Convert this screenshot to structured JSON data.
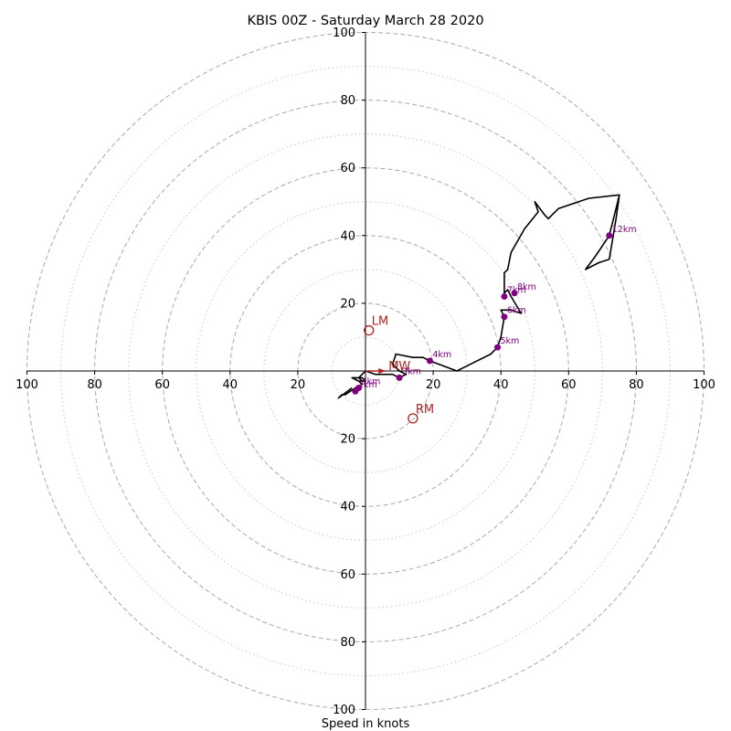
{
  "chart_data": {
    "type": "hodograph",
    "title": "KBIS 00Z - Saturday March 28 2020",
    "xlabel": "Speed in knots",
    "range": [
      -100,
      100
    ],
    "dashed_rings": [
      20,
      40,
      60,
      80,
      100
    ],
    "dotted_rings": [
      10,
      30,
      50,
      70,
      90
    ],
    "x_tick_labels": [
      "100",
      "80",
      "60",
      "40",
      "20",
      "20",
      "40",
      "60",
      "80",
      "100"
    ],
    "y_tick_labels": [
      "100",
      "80",
      "60",
      "40",
      "20",
      "20",
      "40",
      "60",
      "80",
      "100"
    ],
    "colors": {
      "trace": "#000000",
      "height_points": "#800080",
      "motion": "#b22222",
      "ring": "#b0b0b0"
    },
    "trace": [
      [
        -4,
        -5
      ],
      [
        -8,
        -8
      ],
      [
        -7,
        -7
      ],
      [
        -6,
        -7
      ],
      [
        -3,
        -5
      ],
      [
        -1,
        -4
      ],
      [
        -2,
        -3
      ],
      [
        -1,
        -3
      ],
      [
        -2,
        -2
      ],
      [
        -1,
        -2
      ],
      [
        0,
        -3
      ],
      [
        -2,
        -3
      ],
      [
        -4,
        -2
      ],
      [
        -2,
        -2
      ],
      [
        -1,
        -1
      ],
      [
        0,
        0
      ],
      [
        3,
        -1
      ],
      [
        5,
        -1
      ],
      [
        8,
        -1
      ],
      [
        10,
        -2
      ],
      [
        12,
        -1
      ],
      [
        10,
        0
      ],
      [
        8,
        2
      ],
      [
        9,
        5
      ],
      [
        14,
        4
      ],
      [
        17,
        4
      ],
      [
        19,
        3
      ],
      [
        27,
        0
      ],
      [
        37,
        5
      ],
      [
        39,
        7
      ],
      [
        40,
        10
      ],
      [
        41,
        16
      ],
      [
        40,
        18
      ],
      [
        43,
        18
      ],
      [
        46,
        17
      ],
      [
        43,
        22
      ],
      [
        42,
        24
      ],
      [
        41,
        23
      ],
      [
        41,
        27
      ],
      [
        41,
        29
      ],
      [
        42,
        30
      ],
      [
        43,
        35
      ],
      [
        47,
        42
      ],
      [
        51,
        47
      ],
      [
        50,
        50
      ],
      [
        53,
        46
      ],
      [
        54,
        45
      ],
      [
        57,
        48
      ],
      [
        66,
        51
      ],
      [
        75,
        52
      ],
      [
        74,
        45
      ],
      [
        72,
        33
      ],
      [
        69,
        32
      ],
      [
        65,
        30
      ],
      [
        68,
        34
      ],
      [
        72,
        40
      ],
      [
        75,
        52
      ]
    ],
    "height_points": [
      {
        "x": -2,
        "y": -5,
        "label": "1km"
      },
      {
        "x": -3,
        "y": -6,
        "label": "2km"
      },
      {
        "x": 10,
        "y": -2,
        "label": "3km"
      },
      {
        "x": 19,
        "y": 3,
        "label": "4km"
      },
      {
        "x": 39,
        "y": 7,
        "label": "5km"
      },
      {
        "x": 41,
        "y": 16,
        "label": "6km"
      },
      {
        "x": 41,
        "y": 22,
        "label": "7km"
      },
      {
        "x": 44,
        "y": 23,
        "label": "8km"
      },
      {
        "x": 72,
        "y": 40,
        "label": "12km"
      }
    ],
    "storm_motions": [
      {
        "label": "LM",
        "x": 1,
        "y": 12
      },
      {
        "label": "RM",
        "x": 14,
        "y": -14
      }
    ],
    "mean_wind": {
      "label": "MW",
      "x": 6,
      "y": 0
    }
  }
}
